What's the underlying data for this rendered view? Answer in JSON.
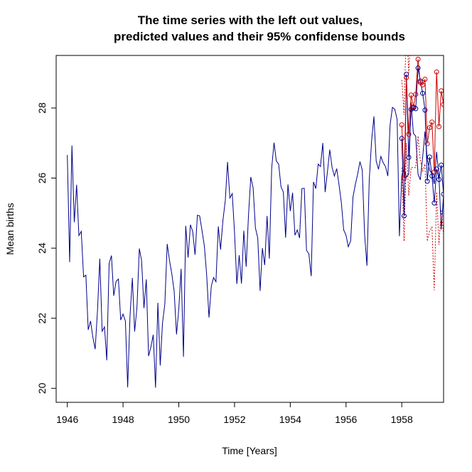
{
  "chart_data": {
    "type": "line",
    "title_line1": "The time series with the left out values,",
    "title_line2": "predicted values and their 95% confidense bounds",
    "xlabel": "Time [Years]",
    "ylabel": "Mean births",
    "xlim": [
      1945.6,
      1959.5
    ],
    "ylim": [
      19.6,
      29.5
    ],
    "x_ticks": [
      1946,
      1948,
      1950,
      1952,
      1954,
      1956,
      1958
    ],
    "x_tick_labels": [
      "1946",
      "1948",
      "1950",
      "1952",
      "1954",
      "1956",
      "1958"
    ],
    "y_ticks": [
      20,
      22,
      24,
      26,
      28
    ],
    "y_tick_labels": [
      "20",
      "22",
      "24",
      "26",
      "28"
    ],
    "grid": false,
    "legend": "none",
    "colors": {
      "observed": "#00008b",
      "predicted": "#cc0000",
      "bounds": "#cc0000"
    },
    "observed": {
      "start": 1946.0,
      "step": 0.0833333,
      "values": [
        26.66,
        23.6,
        26.93,
        24.74,
        25.81,
        24.36,
        24.48,
        23.18,
        23.23,
        21.67,
        21.92,
        21.46,
        21.12,
        22.24,
        23.7,
        21.63,
        21.75,
        20.8,
        23.56,
        23.79,
        22.64,
        23.05,
        23.12,
        21.95,
        22.12,
        21.92,
        20.03,
        22.06,
        23.15,
        21.62,
        22.32,
        23.99,
        23.64,
        22.29,
        23.11,
        20.92,
        21.18,
        21.53,
        20.02,
        22.44,
        20.65,
        21.86,
        22.41,
        24.12,
        23.66,
        23.27,
        22.77,
        21.54,
        22.26,
        23.41,
        20.9,
        24.64,
        23.73,
        24.67,
        24.47,
        23.81,
        24.94,
        24.92,
        24.5,
        24.06,
        23.25,
        22.02,
        22.92,
        23.16,
        23.04,
        24.62,
        23.96,
        24.79,
        25.35,
        26.46,
        25.43,
        25.56,
        24.45,
        22.98,
        23.8,
        22.99,
        24.5,
        23.47,
        24.91,
        26.03,
        25.72,
        24.58,
        24.29,
        22.78,
        24.0,
        23.52,
        24.92,
        23.7,
        26.28,
        27.01,
        26.49,
        26.4,
        25.75,
        25.6,
        24.3,
        25.82,
        25.06,
        25.58,
        24.37,
        24.52,
        24.29,
        25.7,
        25.71,
        23.94,
        23.84,
        23.2,
        25.89,
        25.7,
        26.4,
        26.33,
        27.0,
        25.6,
        26.17,
        26.81,
        26.3,
        26.06,
        26.27,
        25.8,
        25.3,
        24.52,
        24.37,
        24.04,
        24.21,
        25.46,
        25.81,
        26.11,
        26.47,
        26.23,
        24.4,
        23.5,
        25.92,
        27.05,
        27.76,
        26.49,
        26.25,
        26.62,
        26.44,
        26.33,
        26.06,
        27.52,
        28.02,
        27.96,
        27.67,
        24.34,
        26.05,
        26.29,
        26.03,
        26.11,
        28.17,
        27.28,
        27.2,
        26.11,
        25.95,
        26.6,
        27.33,
        26.52,
        26.22,
        26.13,
        25.83,
        26.75,
        26.05,
        24.53,
        25.52,
        26.58,
        26.75,
        26.66,
        25.52,
        26.0,
        26.4,
        26.17,
        27.93,
        26.37,
        27.2,
        25.79,
        28.51,
        28.0,
        27.56,
        25.12,
        26.65,
        27.42,
        26.7,
        28.13,
        27.25,
        27.46,
        27.67,
        27.32,
        26.14,
        27.81,
        27.41,
        28.52,
        28.16,
        27.76,
        25.48,
        27.12,
        26.94,
        26.38,
        25.67,
        26.7,
        26.6,
        26.38,
        26.62,
        27.01,
        26.11,
        25.37,
        24.83,
        26.68,
        26.27,
        26.95,
        27.01,
        26.5,
        26.93,
        26.02,
        26.75,
        26.96,
        25.92,
        25.28,
        25.65,
        25.34,
        27.56,
        28.16,
        26.78,
        27.76,
        26.74,
        26.35,
        27.48,
        26.86
      ]
    },
    "predicted_start": 1958.0,
    "predicted_step": 0.0833333,
    "actual_holdout": [
      27.13,
      24.92,
      28.96,
      26.59,
      27.96,
      28.0,
      27.98,
      29.14,
      28.77,
      28.42,
      27.94,
      25.91,
      26.6,
      26.06,
      25.29,
      26.26,
      25.96,
      26.37,
      25.54,
      28.88
    ],
    "predicted": [
      27.52,
      26.0,
      28.87,
      27.25,
      28.37,
      28.03,
      28.39,
      29.39,
      28.73,
      28.66,
      28.82,
      26.98,
      27.44,
      27.6,
      26.18,
      29.03,
      27.47,
      28.49,
      28.1,
      29.45
    ],
    "lower_bound": [
      26.3,
      24.2,
      27.0,
      25.5,
      26.3,
      26.3,
      26.3,
      27.2,
      26.5,
      26.2,
      26.4,
      24.2,
      24.5,
      24.6,
      22.8,
      25.6,
      24.1,
      25.1,
      24.4,
      25.4
    ],
    "upper_bound": [
      28.8,
      27.8,
      30.5,
      29.0,
      30.4,
      29.8,
      30.5,
      31.4,
      30.9,
      31.1,
      31.2,
      29.7,
      30.4,
      30.6,
      29.5,
      32.4,
      30.8,
      31.8,
      31.8,
      33.5
    ]
  }
}
